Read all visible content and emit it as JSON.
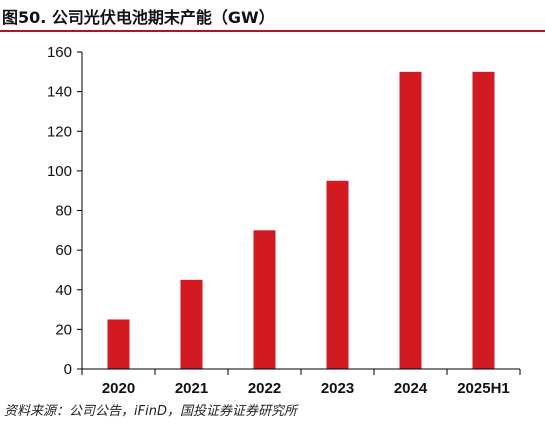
{
  "header": {
    "title": "图50. 公司光伏电池期末产能（GW）"
  },
  "footer": {
    "source": "资料来源：公司公告，iFinD，国投证券证券研究所"
  },
  "colors": {
    "bar": "#d11a22",
    "accent_rule": "#b3151d",
    "axis": "#000000"
  },
  "chart_data": {
    "type": "bar",
    "title": "图50. 公司光伏电池期末产能（GW）",
    "categories": [
      "2020",
      "2021",
      "2022",
      "2023",
      "2024",
      "2025H1"
    ],
    "values": [
      25,
      45,
      70,
      95,
      150,
      150
    ],
    "ylim": [
      0,
      160
    ],
    "yticks": [
      "0",
      "20",
      "40",
      "60",
      "80",
      "100",
      "120",
      "140",
      "160"
    ],
    "xlabel": "",
    "ylabel": "",
    "grid": false,
    "legend": "none"
  }
}
